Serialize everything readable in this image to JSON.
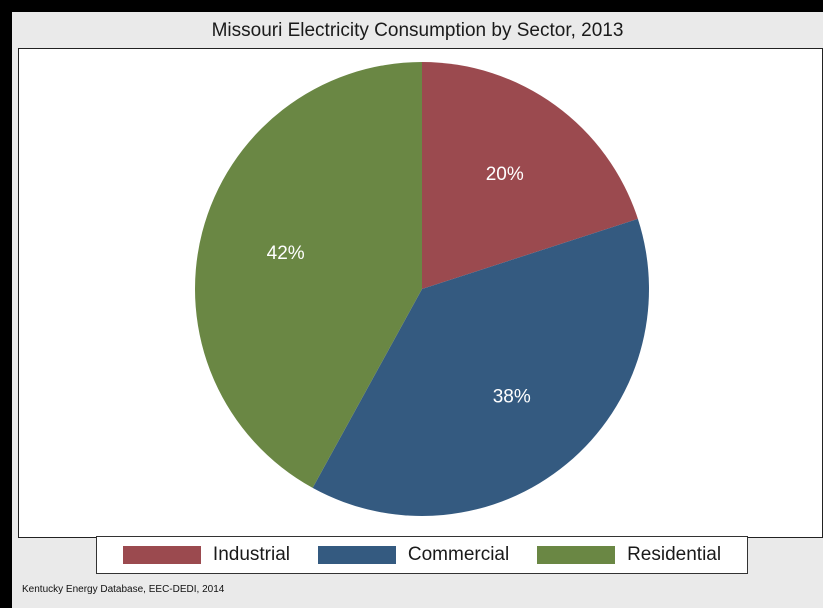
{
  "title": "Missouri Electricity Consumption by Sector, 2013",
  "source": "Kentucky Energy Database, EEC-DEDI, 2014",
  "chart_data": {
    "type": "pie",
    "start_angle": "12 o'clock, clockwise",
    "legend_position": "bottom",
    "slices": [
      {
        "name": "Industrial",
        "value": 20,
        "label": "20%",
        "color": "#9b4a4f"
      },
      {
        "name": "Commercial",
        "value": 38,
        "label": "38%",
        "color": "#345a80"
      },
      {
        "name": "Residential",
        "value": 42,
        "label": "42%",
        "color": "#6a8744"
      }
    ]
  }
}
